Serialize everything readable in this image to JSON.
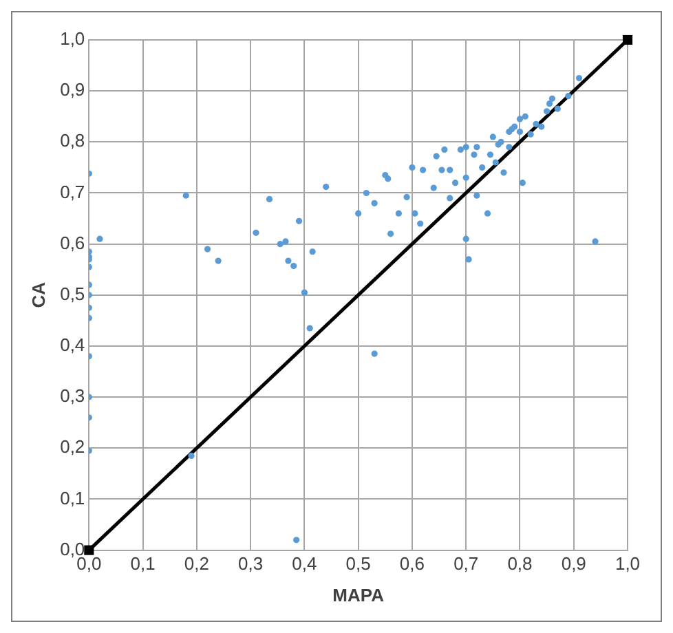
{
  "chart_data": {
    "type": "scatter",
    "xlabel": "MAPA",
    "ylabel": "CA",
    "xlim": [
      0,
      1
    ],
    "ylim": [
      0,
      1
    ],
    "xticks": [
      {
        "value": 0,
        "label": "0,0"
      },
      {
        "value": 0.1,
        "label": "0,1"
      },
      {
        "value": 0.2,
        "label": "0,2"
      },
      {
        "value": 0.3,
        "label": "0,3"
      },
      {
        "value": 0.4,
        "label": "0,4"
      },
      {
        "value": 0.5,
        "label": "0,5"
      },
      {
        "value": 0.6,
        "label": "0,6"
      },
      {
        "value": 0.7,
        "label": "0,7"
      },
      {
        "value": 0.8,
        "label": "0,8"
      },
      {
        "value": 0.9,
        "label": "0,9"
      },
      {
        "value": 1,
        "label": "1,0"
      }
    ],
    "yticks": [
      {
        "value": 0,
        "label": "0,0"
      },
      {
        "value": 0.1,
        "label": "0,1"
      },
      {
        "value": 0.2,
        "label": "0,2"
      },
      {
        "value": 0.3,
        "label": "0,3"
      },
      {
        "value": 0.4,
        "label": "0,4"
      },
      {
        "value": 0.5,
        "label": "0,5"
      },
      {
        "value": 0.6,
        "label": "0,6"
      },
      {
        "value": 0.7,
        "label": "0,7"
      },
      {
        "value": 0.8,
        "label": "0,8"
      },
      {
        "value": 0.9,
        "label": "0,9"
      },
      {
        "value": 1,
        "label": "1,0"
      }
    ],
    "grid": true,
    "legend": false,
    "series": [
      {
        "color": "#5b9bd5",
        "marker": "circle",
        "x": [
          0,
          0,
          0,
          0,
          0,
          0,
          0,
          0,
          0,
          0,
          0,
          0,
          0,
          0.02,
          0.18,
          0.19,
          0.22,
          0.24,
          0.31,
          0.335,
          0.355,
          0.365,
          0.37,
          0.38,
          0.39,
          0.4,
          0.385,
          0.41,
          0.415,
          0.44,
          0.5,
          0.515,
          0.53,
          0.53,
          0.55,
          0.555,
          0.56,
          0.575,
          0.59,
          0.6,
          0.605,
          0.615,
          0.62,
          0.64,
          0.645,
          0.655,
          0.66,
          0.67,
          0.67,
          0.68,
          0.69,
          0.7,
          0.7,
          0.7,
          0.705,
          0.715,
          0.72,
          0.72,
          0.73,
          0.74,
          0.745,
          0.75,
          0.755,
          0.76,
          0.765,
          0.77,
          0.78,
          0.78,
          0.785,
          0.79,
          0.8,
          0.8,
          0.805,
          0.81,
          0.82,
          0.83,
          0.84,
          0.85,
          0.855,
          0.86,
          0.87,
          0.89,
          0.91,
          0.94
        ],
        "values": [
          0.738,
          0.585,
          0.575,
          0.57,
          0.555,
          0.52,
          0.5,
          0.475,
          0.455,
          0.38,
          0.3,
          0.26,
          0.195,
          0.61,
          0.695,
          0.185,
          0.59,
          0.567,
          0.622,
          0.688,
          0.6,
          0.605,
          0.567,
          0.557,
          0.645,
          0.505,
          0.02,
          0.435,
          0.585,
          0.712,
          0.66,
          0.7,
          0.68,
          0.385,
          0.735,
          0.728,
          0.62,
          0.66,
          0.692,
          0.75,
          0.66,
          0.64,
          0.745,
          0.71,
          0.772,
          0.745,
          0.785,
          0.745,
          0.69,
          0.72,
          0.785,
          0.79,
          0.73,
          0.61,
          0.57,
          0.775,
          0.695,
          0.79,
          0.75,
          0.66,
          0.775,
          0.81,
          0.76,
          0.795,
          0.8,
          0.74,
          0.82,
          0.79,
          0.825,
          0.83,
          0.845,
          0.82,
          0.72,
          0.85,
          0.815,
          0.835,
          0.83,
          0.86,
          0.875,
          0.885,
          0.865,
          0.89,
          0.925,
          0.605
        ]
      },
      {
        "type": "line",
        "color": "#000000",
        "marker": "square",
        "line_style": "solid",
        "x": [
          0,
          1
        ],
        "values": [
          0,
          1
        ]
      }
    ]
  }
}
